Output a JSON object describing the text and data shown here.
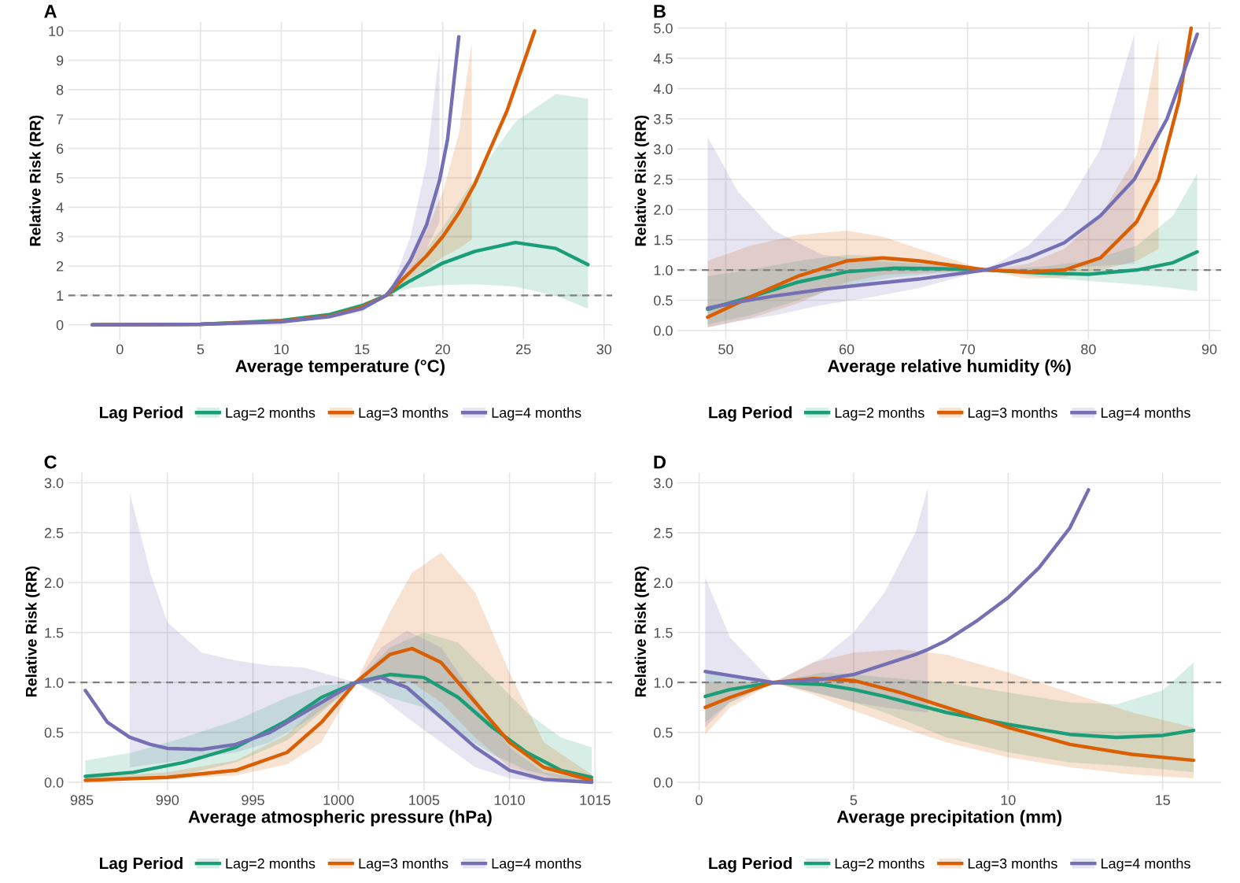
{
  "chart_data": [
    {
      "type": "line",
      "title": "A",
      "xlabel": "Average temperature (°C)",
      "ylabel": "Relative Risk (RR)",
      "legend_title": "Lag Period",
      "legend": "bottom",
      "grid": true,
      "xlim": [
        -3.2,
        30.5
      ],
      "xticks": [
        0,
        5,
        10,
        15,
        20,
        25,
        30
      ],
      "ylim": [
        -0.5,
        10.3
      ],
      "yticks": [
        0,
        1,
        2,
        3,
        4,
        5,
        6,
        7,
        8,
        9,
        10
      ],
      "ref_lines": [
        {
          "axis": "y",
          "value": 1,
          "color": "#808080",
          "line_style": "dashed"
        }
      ],
      "series": [
        {
          "name": "Lag=2 months",
          "color": "#1b9e77",
          "x": [
            -1.7,
            5,
            10,
            13,
            15,
            16.5,
            18,
            20,
            22,
            24.5,
            27,
            29
          ],
          "values": [
            0,
            0.02,
            0.15,
            0.35,
            0.65,
            1,
            1.5,
            2.1,
            2.5,
            2.8,
            2.6,
            2.05
          ],
          "lower": [
            0,
            0.01,
            0.1,
            0.28,
            0.55,
            1,
            1.25,
            1.35,
            1.38,
            1.3,
            1.0,
            0.55
          ],
          "upper": [
            0,
            0.03,
            0.2,
            0.42,
            0.75,
            1,
            1.9,
            3.3,
            5.0,
            6.9,
            7.85,
            7.7
          ]
        },
        {
          "name": "Lag=3 months",
          "color": "#d95f02",
          "x": [
            -1.7,
            5,
            10,
            13,
            15,
            16.5,
            18,
            19,
            20,
            21,
            21.8,
            22,
            24,
            25.7
          ],
          "values": [
            0,
            0.02,
            0.12,
            0.3,
            0.6,
            1,
            1.8,
            2.35,
            3.0,
            3.8,
            4.6,
            4.8,
            7.3,
            10
          ],
          "lower": [
            0,
            0.01,
            0.08,
            0.25,
            0.5,
            1,
            1.6,
            1.9,
            2.3,
            2.6,
            2.9,
            null,
            null,
            null
          ],
          "upper": [
            0,
            0.03,
            0.16,
            0.35,
            0.7,
            1,
            2.2,
            3.2,
            4.5,
            6.5,
            9.6,
            null,
            null,
            null
          ]
        },
        {
          "name": "Lag=4 months",
          "color": "#7570b3",
          "x": [
            -1.7,
            5,
            10,
            13,
            15,
            16.5,
            17,
            18,
            19,
            19.8,
            20.3,
            21
          ],
          "values": [
            0,
            0.02,
            0.1,
            0.28,
            0.55,
            1,
            1.35,
            2.2,
            3.4,
            4.9,
            6.3,
            9.8
          ],
          "lower": [
            0,
            0.01,
            0.07,
            0.22,
            0.45,
            1,
            1.2,
            1.8,
            2.6,
            3.5,
            null,
            null
          ],
          "upper": [
            0,
            0.03,
            0.14,
            0.34,
            0.65,
            1,
            1.5,
            3.0,
            5.5,
            9.3,
            null,
            null
          ]
        }
      ]
    },
    {
      "type": "line",
      "title": "B",
      "xlabel": "Average relative humidity (%)",
      "ylabel": "Relative Risk (RR)",
      "legend_title": "Lag Period",
      "legend": "bottom",
      "grid": true,
      "xlim": [
        46,
        91
      ],
      "xticks": [
        50,
        60,
        70,
        80,
        90
      ],
      "ylim": [
        -0.15,
        5.1
      ],
      "yticks": [
        {
          "value": 0,
          "label": "0.0"
        },
        0.5,
        {
          "value": 1,
          "label": "1.0"
        },
        1.5,
        {
          "value": 2,
          "label": "2.0"
        },
        2.5,
        {
          "value": 3,
          "label": "3.0"
        },
        3.5,
        {
          "value": 4,
          "label": "4.0"
        },
        4.5,
        {
          "value": 5,
          "label": "5.0"
        }
      ],
      "ref_lines": [
        {
          "axis": "y",
          "value": 1,
          "color": "#808080",
          "line_style": "dashed"
        }
      ],
      "series": [
        {
          "name": "Lag=2 months",
          "color": "#1b9e77",
          "x": [
            48.5,
            52,
            56,
            60,
            64,
            68,
            71.5,
            76,
            80,
            84,
            87,
            89
          ],
          "values": [
            0.35,
            0.55,
            0.8,
            0.97,
            1.03,
            1.02,
            1,
            0.95,
            0.93,
            1.0,
            1.12,
            1.3
          ],
          "lower": [
            0.1,
            0.25,
            0.5,
            0.75,
            0.88,
            0.95,
            1,
            0.88,
            0.82,
            0.76,
            0.7,
            0.65
          ],
          "upper": [
            0.9,
            1.0,
            1.15,
            1.25,
            1.22,
            1.1,
            1,
            1.05,
            1.15,
            1.4,
            1.9,
            2.6
          ]
        },
        {
          "name": "Lag=3 months",
          "color": "#d95f02",
          "x": [
            48.5,
            52,
            56,
            60,
            63,
            66,
            71.5,
            75,
            78,
            81,
            84,
            85.8,
            87.5,
            88.5
          ],
          "values": [
            0.22,
            0.55,
            0.9,
            1.15,
            1.2,
            1.15,
            1,
            0.97,
            1.0,
            1.2,
            1.8,
            2.5,
            3.8,
            5.0
          ],
          "lower": [
            0.05,
            0.2,
            0.45,
            0.8,
            0.92,
            0.95,
            1,
            0.85,
            0.88,
            1.0,
            1.15,
            1.35,
            null,
            null
          ],
          "upper": [
            1.15,
            1.4,
            1.58,
            1.65,
            1.55,
            1.35,
            1,
            1.1,
            1.35,
            1.9,
            2.9,
            4.8,
            null,
            null
          ]
        },
        {
          "name": "Lag=4 months",
          "color": "#7570b3",
          "x": [
            48.5,
            51,
            54,
            58,
            62,
            66,
            71.5,
            75,
            78,
            81,
            83.8,
            86.5,
            89
          ],
          "values": [
            0.37,
            0.47,
            0.57,
            0.68,
            0.77,
            0.85,
            1,
            1.2,
            1.45,
            1.9,
            2.5,
            3.5,
            4.9
          ],
          "lower": [
            0.05,
            0.15,
            0.25,
            0.42,
            0.55,
            0.7,
            1,
            1.0,
            1.03,
            1.07,
            1.1,
            null,
            null
          ],
          "upper": [
            3.2,
            2.3,
            1.65,
            1.25,
            1.15,
            1.1,
            1,
            1.4,
            2.0,
            3.0,
            4.9,
            null,
            null
          ]
        }
      ]
    },
    {
      "type": "line",
      "title": "C",
      "xlabel": "Average atmospheric pressure (hPa)",
      "ylabel": "Relative Risk (RR)",
      "legend_title": "Lag Period",
      "legend": "bottom",
      "grid": true,
      "xlim": [
        984.2,
        1016
      ],
      "xticks": [
        985,
        990,
        995,
        1000,
        1005,
        1010,
        1015
      ],
      "ylim": [
        -0.08,
        3.1
      ],
      "yticks": [
        {
          "value": 0,
          "label": "0.0"
        },
        0.5,
        {
          "value": 1,
          "label": "1.0"
        },
        1.5,
        {
          "value": 2,
          "label": "2.0"
        },
        2.5,
        {
          "value": 3,
          "label": "3.0"
        }
      ],
      "ref_lines": [
        {
          "axis": "y",
          "value": 1,
          "color": "#808080",
          "line_style": "dashed"
        }
      ],
      "series": [
        {
          "name": "Lag=2 months",
          "color": "#1b9e77",
          "x": [
            985.2,
            988,
            991,
            994,
            997,
            999,
            1001,
            1003,
            1005,
            1007,
            1009,
            1011,
            1013,
            1014.8
          ],
          "values": [
            0.06,
            0.1,
            0.2,
            0.35,
            0.62,
            0.85,
            1,
            1.08,
            1.05,
            0.85,
            0.55,
            0.3,
            0.12,
            0.05
          ],
          "lower": [
            0.02,
            0.04,
            0.08,
            0.2,
            0.42,
            0.7,
            1,
            0.85,
            0.75,
            0.5,
            0.28,
            0.12,
            0.04,
            0.02
          ],
          "upper": [
            0.22,
            0.3,
            0.45,
            0.62,
            0.85,
            0.97,
            1,
            1.35,
            1.5,
            1.4,
            1.05,
            0.7,
            0.45,
            0.35
          ]
        },
        {
          "name": "Lag=3 months",
          "color": "#d95f02",
          "x": [
            985.2,
            990,
            994,
            997,
            999,
            1001,
            1003,
            1004.3,
            1006,
            1008,
            1010,
            1012,
            1014.8
          ],
          "values": [
            0.02,
            0.05,
            0.12,
            0.3,
            0.6,
            1,
            1.28,
            1.34,
            1.2,
            0.8,
            0.4,
            0.15,
            0.02
          ],
          "lower": [
            0.01,
            0.03,
            0.07,
            0.18,
            0.4,
            1,
            1.05,
            1.0,
            0.8,
            0.45,
            0.15,
            0.05,
            0.005
          ],
          "upper": [
            0.05,
            0.1,
            0.22,
            0.48,
            0.8,
            1,
            1.7,
            2.1,
            2.3,
            1.9,
            1.1,
            0.4,
            0.08
          ]
        },
        {
          "name": "Lag=4 months",
          "color": "#7570b3",
          "x": [
            985.2,
            986.5,
            987.8,
            989,
            990,
            992,
            994,
            996,
            998,
            1000,
            1001,
            1002.5,
            1004,
            1006,
            1008,
            1010,
            1012,
            1014.8
          ],
          "values": [
            0.92,
            0.6,
            0.45,
            0.38,
            0.34,
            0.33,
            0.38,
            0.5,
            0.7,
            0.9,
            1,
            1.05,
            0.95,
            0.65,
            0.35,
            0.12,
            0.03,
            0
          ],
          "lower": [
            null,
            null,
            0.15,
            0.18,
            0.2,
            0.25,
            0.3,
            0.4,
            0.6,
            0.85,
            1,
            0.85,
            0.65,
            0.4,
            0.15,
            0.04,
            0.01,
            0
          ],
          "upper": [
            null,
            null,
            2.9,
            2.1,
            1.6,
            1.3,
            1.22,
            1.17,
            1.15,
            1.05,
            1,
            1.35,
            1.52,
            1.35,
            0.85,
            0.35,
            0.1,
            0.02
          ]
        }
      ]
    },
    {
      "type": "line",
      "title": "D",
      "xlabel": "Average precipitation (mm)",
      "ylabel": "Relative Risk (RR)",
      "legend_title": "Lag Period",
      "legend": "bottom",
      "grid": true,
      "xlim": [
        -0.7,
        16.9
      ],
      "xticks": [
        0,
        5,
        10,
        15
      ],
      "ylim": [
        -0.08,
        3.1
      ],
      "yticks": [
        {
          "value": 0,
          "label": "0.0"
        },
        0.5,
        {
          "value": 1,
          "label": "1.0"
        },
        1.5,
        {
          "value": 2,
          "label": "2.0"
        },
        2.5,
        {
          "value": 3,
          "label": "3.0"
        }
      ],
      "ref_lines": [
        {
          "axis": "y",
          "value": 1,
          "color": "#808080",
          "line_style": "dashed"
        }
      ],
      "series": [
        {
          "name": "Lag=2 months",
          "color": "#1b9e77",
          "x": [
            0.2,
            1,
            2.4,
            4,
            5,
            6,
            8,
            10,
            12,
            13.5,
            15,
            16
          ],
          "values": [
            0.86,
            0.93,
            1,
            0.98,
            0.93,
            0.86,
            0.7,
            0.58,
            0.48,
            0.45,
            0.47,
            0.52
          ],
          "lower": [
            0.6,
            0.8,
            1,
            0.88,
            0.8,
            0.7,
            0.45,
            0.3,
            0.2,
            0.17,
            0.13,
            0.1
          ],
          "upper": [
            1.1,
            1.05,
            1,
            1.1,
            1.08,
            1.05,
            1.0,
            0.9,
            0.8,
            0.78,
            0.92,
            1.2
          ]
        },
        {
          "name": "Lag=3 months",
          "color": "#d95f02",
          "x": [
            0.2,
            1,
            2.4,
            3.7,
            5,
            6.5,
            8,
            10,
            12,
            14,
            16
          ],
          "values": [
            0.75,
            0.85,
            1,
            1.04,
            1.02,
            0.9,
            0.75,
            0.55,
            0.38,
            0.28,
            0.22
          ],
          "lower": [
            0.48,
            0.75,
            1,
            0.88,
            0.72,
            0.55,
            0.4,
            0.25,
            0.15,
            0.08,
            0.04
          ],
          "upper": [
            1.0,
            1.0,
            1,
            1.2,
            1.3,
            1.33,
            1.28,
            1.1,
            0.9,
            0.7,
            0.55
          ]
        },
        {
          "name": "Lag=4 months",
          "color": "#7570b3",
          "x": [
            0.2,
            1,
            2.4,
            4,
            5,
            6,
            7,
            7.4,
            8,
            9,
            10,
            11,
            12,
            12.6
          ],
          "values": [
            1.11,
            1.07,
            1,
            1.03,
            1.08,
            1.18,
            1.28,
            1.33,
            1.42,
            1.62,
            1.85,
            2.15,
            2.55,
            2.93
          ],
          "lower": [
            0.55,
            0.8,
            1,
            0.88,
            0.8,
            0.75,
            0.71,
            0.7,
            null,
            null,
            null,
            null,
            null,
            null
          ],
          "upper": [
            2.05,
            1.45,
            1,
            1.25,
            1.5,
            1.9,
            2.5,
            2.95,
            null,
            null,
            null,
            null,
            null,
            null
          ]
        }
      ]
    }
  ]
}
